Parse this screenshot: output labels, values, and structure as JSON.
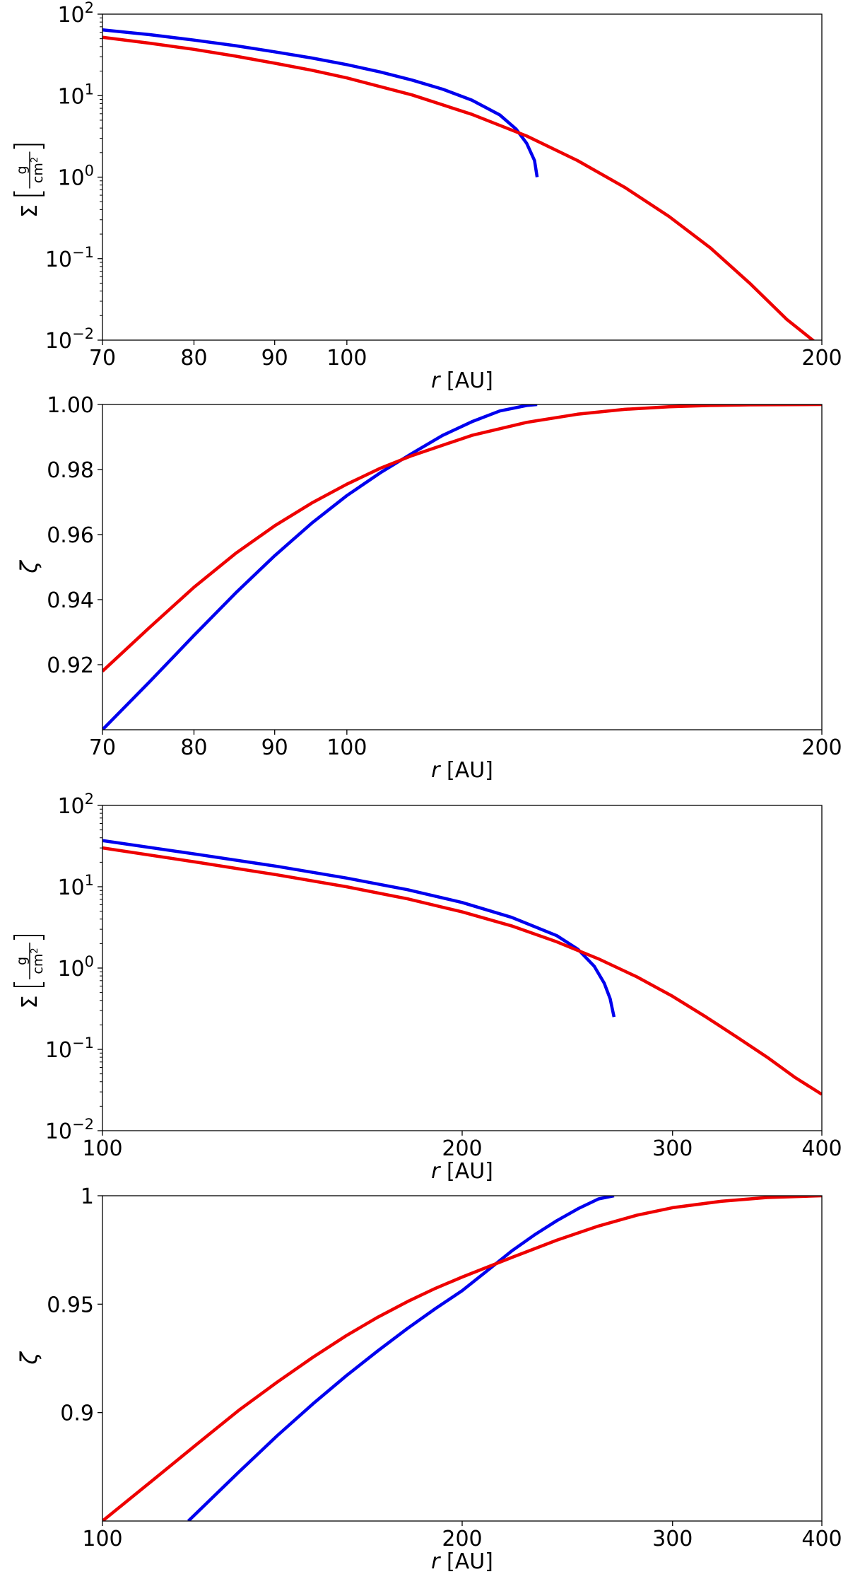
{
  "chart_data": [
    {
      "type": "line",
      "xscale": "log",
      "yscale": "log",
      "xlim": [
        70,
        200
      ],
      "ylim": [
        0.01,
        100
      ],
      "xlabel": "r [AU]",
      "ylabel": "Σ [g/cm²]",
      "xticks": [
        70,
        80,
        90,
        100,
        200
      ],
      "xtick_labels": [
        "70",
        "80",
        "90",
        "100",
        "200"
      ],
      "yticks": [
        0.01,
        0.1,
        1,
        10,
        100
      ],
      "ytick_labels": [
        "10^-2",
        "10^-1",
        "10^0",
        "10^1",
        "10^2"
      ],
      "grid": false,
      "series": [
        {
          "color": "#0000ee",
          "x": [
            70,
            75,
            80,
            85,
            90,
            95,
            100,
            105,
            110,
            115,
            120,
            125,
            128,
            130,
            131.5,
            132
          ],
          "y": [
            64,
            56,
            48,
            41,
            34.5,
            29,
            24,
            19.5,
            15.5,
            12,
            8.8,
            5.8,
            3.9,
            2.6,
            1.6,
            1.0
          ]
        },
        {
          "color": "#ee0000",
          "x": [
            70,
            75,
            80,
            85,
            90,
            95,
            100,
            110,
            120,
            130,
            140,
            150,
            160,
            170,
            180,
            190,
            198
          ],
          "y": [
            52,
            44,
            37,
            30.5,
            25,
            20.5,
            16.5,
            10.2,
            5.9,
            3.2,
            1.6,
            0.75,
            0.33,
            0.135,
            0.05,
            0.018,
            0.0095
          ]
        }
      ]
    },
    {
      "type": "line",
      "xscale": "log",
      "yscale": "linear",
      "xlim": [
        70,
        200
      ],
      "ylim": [
        0.9,
        1.0
      ],
      "xlabel": "r [AU]",
      "ylabel": "ζ",
      "xticks": [
        70,
        80,
        90,
        100,
        200
      ],
      "xtick_labels": [
        "70",
        "80",
        "90",
        "100",
        "200"
      ],
      "yticks": [
        0.92,
        0.94,
        0.96,
        0.98,
        1.0
      ],
      "ytick_labels": [
        "0.92",
        "0.94",
        "0.96",
        "0.98",
        "1.00"
      ],
      "grid": false,
      "series": [
        {
          "color": "#0000ee",
          "x": [
            70,
            75,
            80,
            85,
            90,
            95,
            100,
            105,
            110,
            115,
            120,
            125,
            130,
            132
          ],
          "y": [
            0.9,
            0.9148,
            0.929,
            0.942,
            0.9535,
            0.9635,
            0.972,
            0.979,
            0.985,
            0.9905,
            0.9947,
            0.998,
            0.9997,
            1.0
          ]
        },
        {
          "color": "#ee0000",
          "x": [
            70,
            75,
            80,
            85,
            90,
            95,
            100,
            105,
            110,
            120,
            130,
            140,
            150,
            160,
            170,
            180,
            200
          ],
          "y": [
            0.918,
            0.9315,
            0.9438,
            0.9542,
            0.9627,
            0.9697,
            0.9755,
            0.9804,
            0.9843,
            0.9905,
            0.9945,
            0.997,
            0.9985,
            0.9993,
            0.9997,
            0.9999,
            1.0
          ]
        }
      ]
    },
    {
      "type": "line",
      "xscale": "log",
      "yscale": "log",
      "xlim": [
        100,
        400
      ],
      "ylim": [
        0.01,
        100
      ],
      "xlabel": "r [AU]",
      "ylabel": "Σ [g/cm²]",
      "xticks": [
        100,
        200,
        300,
        400
      ],
      "xtick_labels": [
        "100",
        "200",
        "300",
        "400"
      ],
      "yticks": [
        0.01,
        0.1,
        1,
        10,
        100
      ],
      "ytick_labels": [
        "10^-2",
        "10^-1",
        "10^0",
        "10^1",
        "10^2"
      ],
      "grid": false,
      "series": [
        {
          "color": "#0000ee",
          "x": [
            100,
            120,
            140,
            160,
            180,
            200,
            220,
            240,
            250,
            258,
            263,
            266,
            268
          ],
          "y": [
            37,
            25,
            17.8,
            12.8,
            9.2,
            6.4,
            4.2,
            2.5,
            1.7,
            1.05,
            0.65,
            0.42,
            0.25
          ]
        },
        {
          "color": "#ee0000",
          "x": [
            100,
            120,
            140,
            160,
            180,
            200,
            220,
            240,
            260,
            280,
            300,
            320,
            340,
            360,
            380,
            400
          ],
          "y": [
            30,
            20,
            14,
            10,
            7.1,
            4.9,
            3.3,
            2.1,
            1.3,
            0.78,
            0.45,
            0.25,
            0.14,
            0.08,
            0.045,
            0.028
          ]
        }
      ]
    },
    {
      "type": "line",
      "xscale": "log",
      "yscale": "linear",
      "xlim": [
        100,
        400
      ],
      "ylim": [
        0.85,
        1.0
      ],
      "xlabel": "r [AU]",
      "ylabel": "ζ",
      "xticks": [
        100,
        200,
        300,
        400
      ],
      "xtick_labels": [
        "100",
        "200",
        "300",
        "400"
      ],
      "yticks": [
        0.9,
        0.95,
        1.0
      ],
      "ytick_labels": [
        "0.9",
        "0.95",
        "1"
      ],
      "grid": false,
      "series": [
        {
          "color": "#0000ee",
          "x": [
            118,
            130,
            140,
            150,
            160,
            170,
            180,
            190,
            200,
            210,
            220,
            230,
            240,
            250,
            260,
            268
          ],
          "y": [
            0.85,
            0.8725,
            0.8893,
            0.904,
            0.917,
            0.9285,
            0.9388,
            0.948,
            0.9562,
            0.9655,
            0.9745,
            0.982,
            0.9885,
            0.994,
            0.9985,
            1.0
          ]
        },
        {
          "color": "#ee0000",
          "x": [
            100,
            110,
            120,
            130,
            140,
            150,
            160,
            170,
            180,
            190,
            200,
            220,
            240,
            260,
            280,
            300,
            330,
            360,
            400
          ],
          "y": [
            0.85,
            0.8685,
            0.8855,
            0.901,
            0.914,
            0.9255,
            0.9355,
            0.944,
            0.9512,
            0.9573,
            0.9625,
            0.9715,
            0.9795,
            0.986,
            0.991,
            0.9945,
            0.9975,
            0.9992,
            1.0
          ]
        }
      ]
    }
  ]
}
